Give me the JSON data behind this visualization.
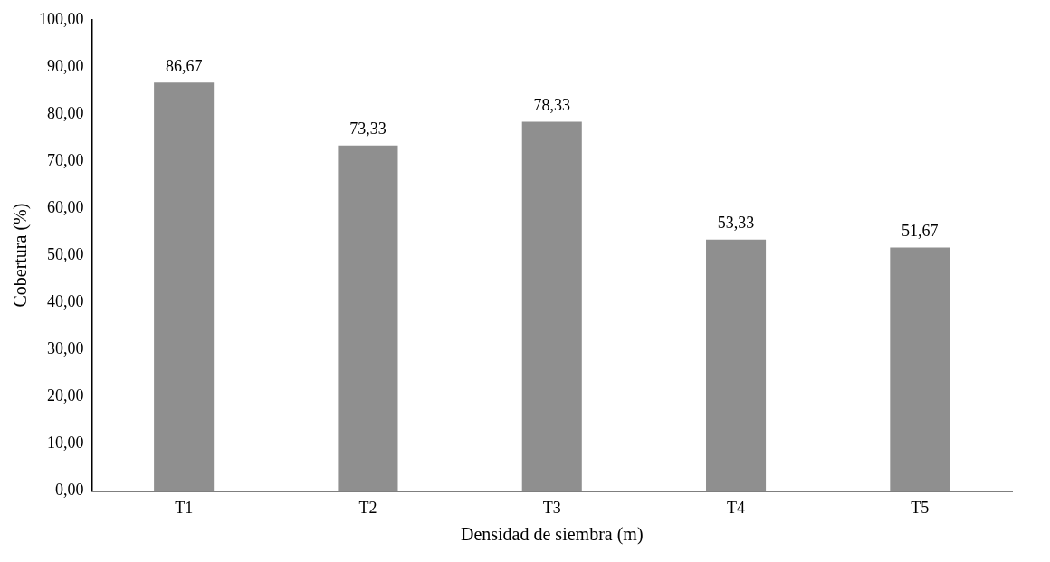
{
  "chart_data": {
    "type": "bar",
    "xlabel": "Densidad de siembra (m)",
    "ylabel": "Cobertura (%)",
    "categories": [
      "T1",
      "T2",
      "T3",
      "T4",
      "T5"
    ],
    "values": [
      86.67,
      73.33,
      78.33,
      53.33,
      51.67
    ],
    "value_labels": [
      "86,67",
      "73,33",
      "78,33",
      "53,33",
      "51,67"
    ],
    "color": "#8f8f8f",
    "ylim": [
      0,
      100
    ],
    "yticks": [
      {
        "value": 0,
        "label": "0,00"
      },
      {
        "value": 10,
        "label": "10,00"
      },
      {
        "value": 20,
        "label": "20,00"
      },
      {
        "value": 30,
        "label": "30,00"
      },
      {
        "value": 40,
        "label": "40,00"
      },
      {
        "value": 50,
        "label": "50,00"
      },
      {
        "value": 60,
        "label": "60,00"
      },
      {
        "value": 70,
        "label": "70,00"
      },
      {
        "value": 80,
        "label": "80,00"
      },
      {
        "value": 90,
        "label": "90,00"
      },
      {
        "value": 100,
        "label": "100,00"
      }
    ],
    "grid": false,
    "legend": false
  }
}
